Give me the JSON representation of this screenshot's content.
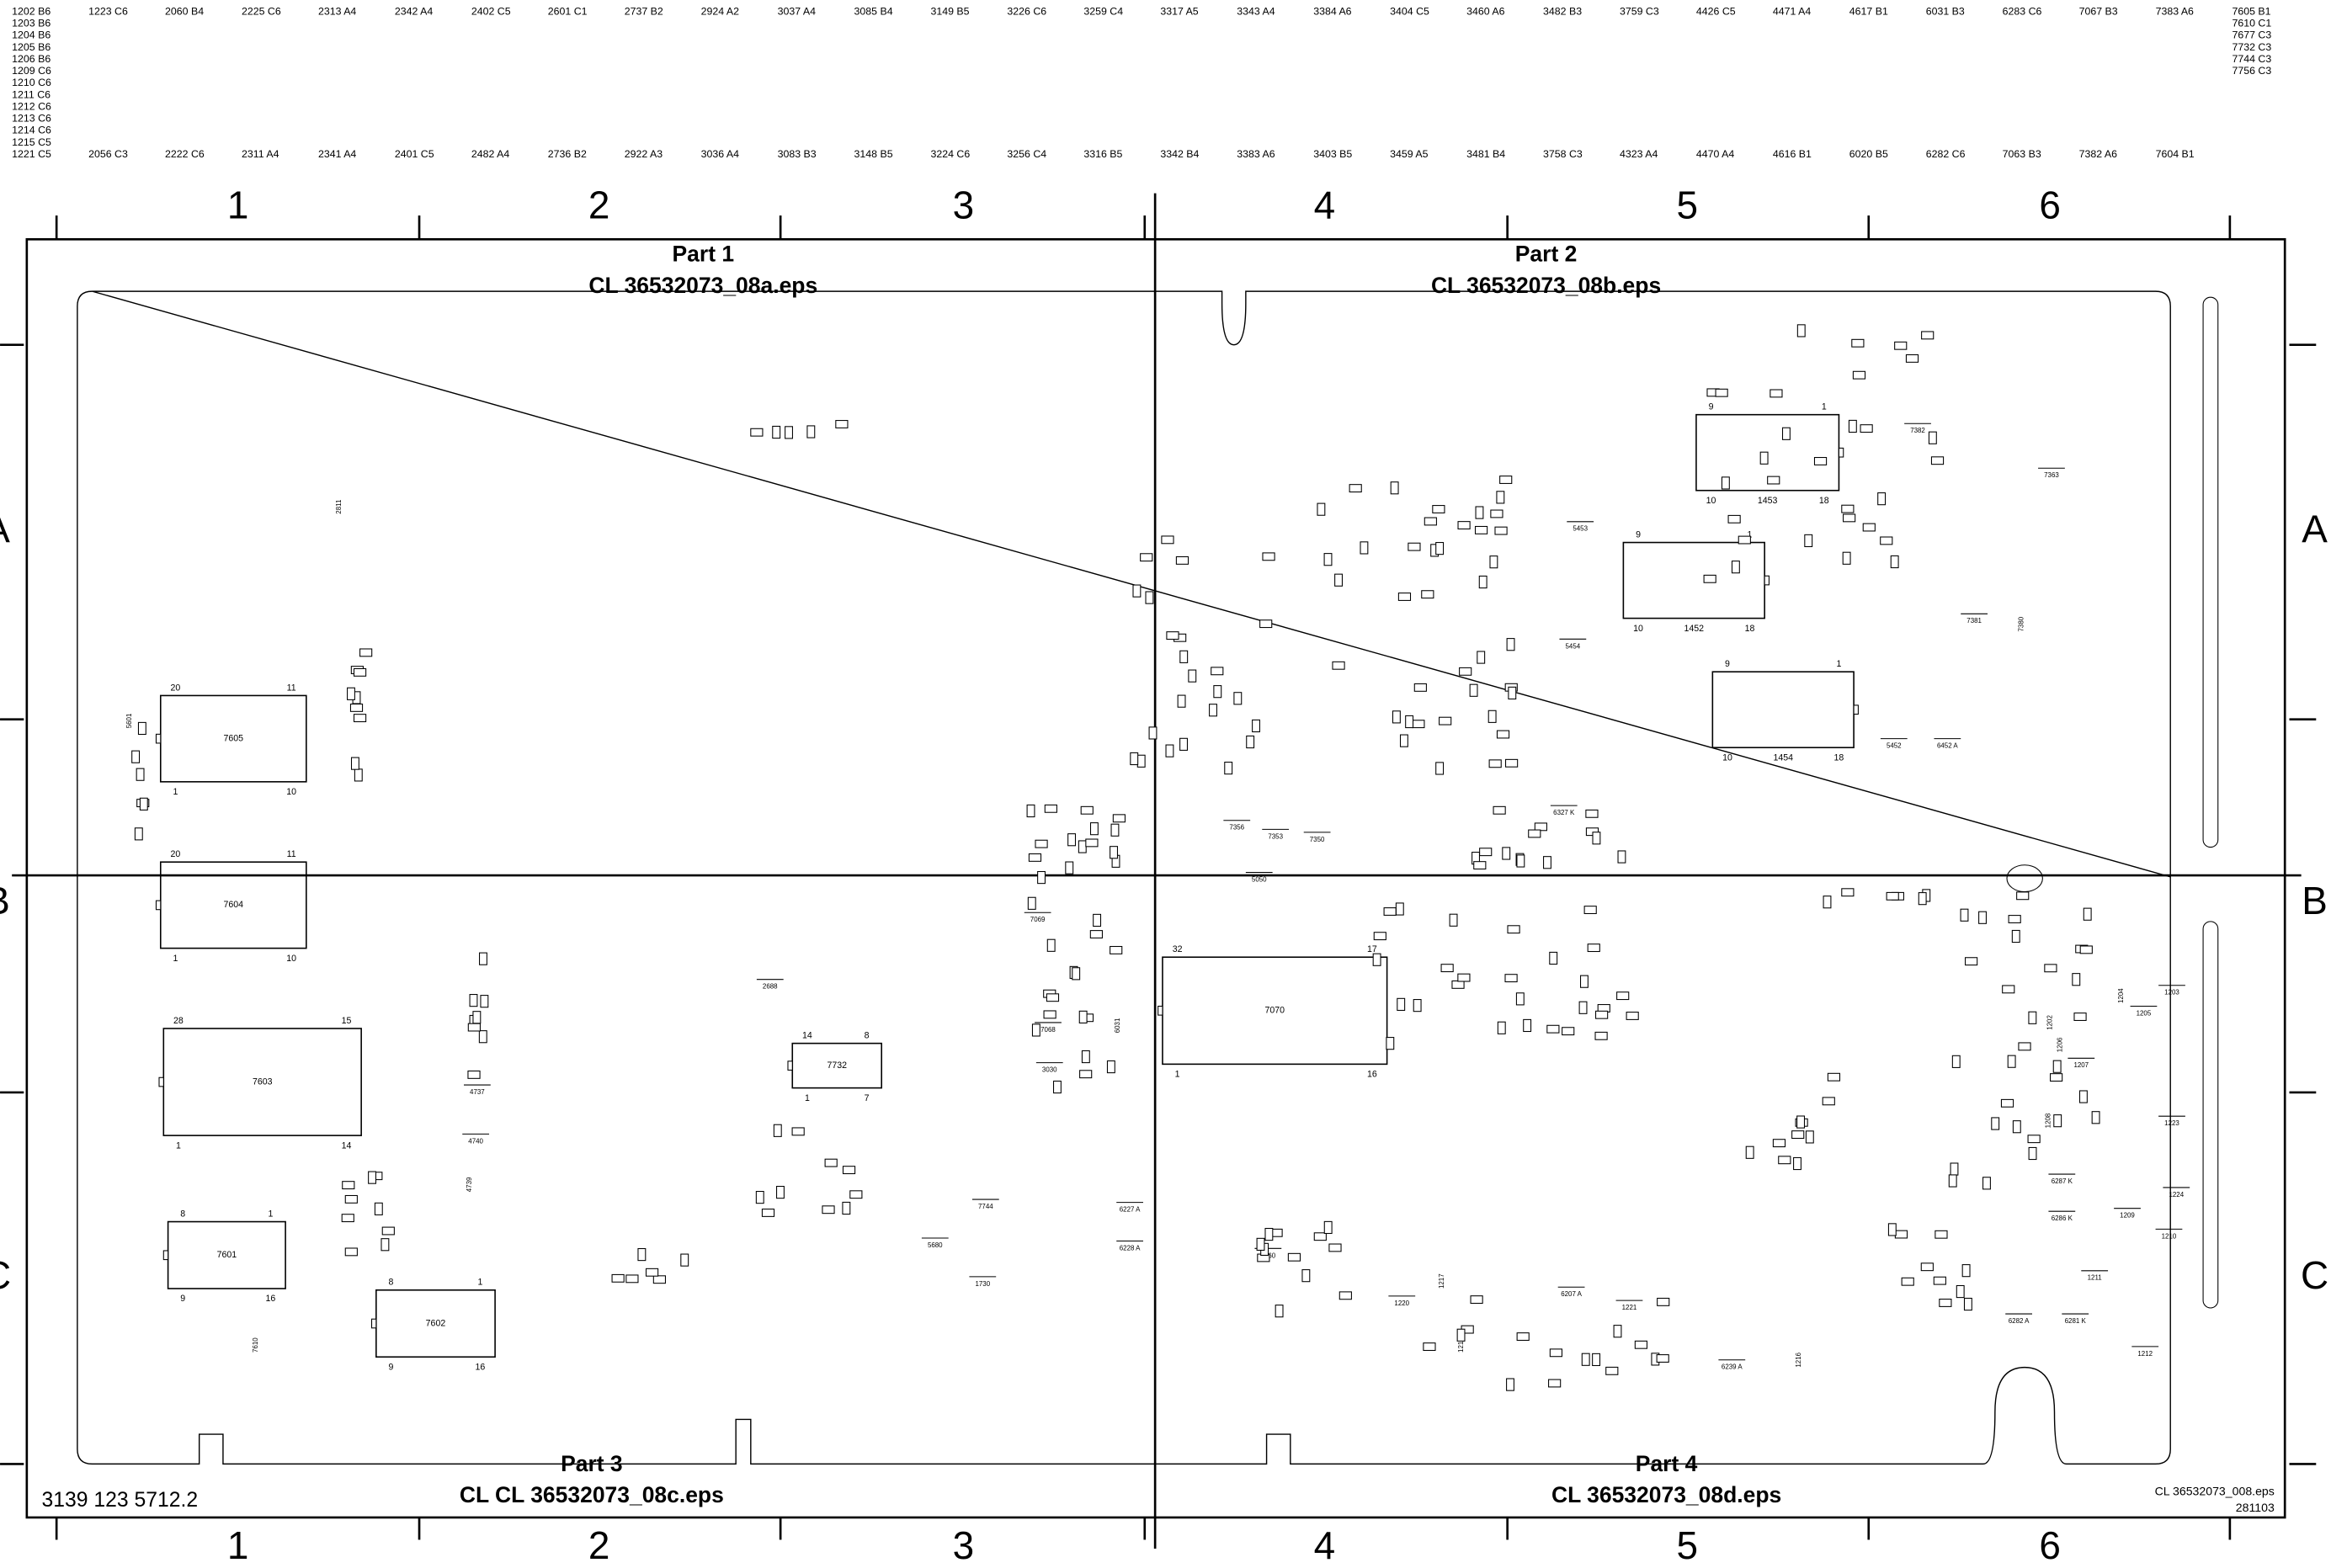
{
  "reference_table": [
    [
      "1202 B6",
      "1203 B6",
      "1204 B6",
      "1205 B6",
      "1206 B6",
      "1209 C6",
      "1210 C6",
      "1211 C6",
      "1212 C6",
      "1213 C6",
      "1214 C6",
      "1215 C5",
      "1221 C5"
    ],
    [
      "1223 C6",
      "2056 C3"
    ],
    [
      "2060 B4",
      "2222 C6"
    ],
    [
      "2225 C6",
      "2311 A4"
    ],
    [
      "2313 A4",
      "2341 A4"
    ],
    [
      "2342 A4",
      "2401 C5"
    ],
    [
      "2402 C5",
      "2482 A4"
    ],
    [
      "2601 C1",
      "2736 B2"
    ],
    [
      "2737 B2",
      "2922 A3"
    ],
    [
      "2924 A2",
      "3036 A4"
    ],
    [
      "3037 A4",
      "3083 B3"
    ],
    [
      "3085 B4",
      "3148 B5"
    ],
    [
      "3149 B5",
      "3224 C6"
    ],
    [
      "3226 C6",
      "3256 C4"
    ],
    [
      "3259 C4",
      "3316 B5"
    ],
    [
      "3317 A5",
      "3342 B4"
    ],
    [
      "3343 A4",
      "3383 A6"
    ],
    [
      "3384 A6",
      "3403 B5"
    ],
    [
      "3404 C5",
      "3459 A5"
    ],
    [
      "3460 A6",
      "3481 B4"
    ],
    [
      "3482 B3",
      "3758 C3"
    ],
    [
      "3759 C3",
      "4323 A4"
    ],
    [
      "4426 C5",
      "4470 A4"
    ],
    [
      "4471 A4",
      "4616 B1"
    ],
    [
      "4617 B1",
      "6020 B5"
    ],
    [
      "6031 B3",
      "6282 C6"
    ],
    [
      "6283 C6",
      "7063 B3"
    ],
    [
      "7067 B3",
      "7382 A6"
    ],
    [
      "7383 A6",
      "7604 B1"
    ],
    [
      "7605 B1",
      "7610 C1",
      "7677 C3",
      "7732 C3",
      "7744 C3",
      "7756 C3"
    ]
  ],
  "grid_columns": [
    "1",
    "2",
    "3",
    "4",
    "5",
    "6"
  ],
  "grid_rows": [
    "A",
    "B",
    "C"
  ],
  "parts": [
    {
      "title": "Part 1",
      "file": "CL 36532073_08a.eps"
    },
    {
      "title": "Part 2",
      "file": "CL 36532073_08b.eps"
    },
    {
      "title": "Part 3",
      "file": "CL CL 36532073_08c.eps"
    },
    {
      "title": "Part 4",
      "file": "CL 36532073_08d.eps"
    }
  ],
  "ics": [
    {
      "label": "7605",
      "pins": [
        "20",
        "11",
        "1",
        "10"
      ]
    },
    {
      "label": "7604",
      "pins": [
        "20",
        "11",
        "1",
        "10"
      ]
    },
    {
      "label": "7603",
      "pins": [
        "28",
        "15",
        "1",
        "14"
      ]
    },
    {
      "label": "7601",
      "pins": [
        "8",
        "1",
        "9",
        "16"
      ]
    },
    {
      "label": "7602",
      "pins": [
        "8",
        "1",
        "9",
        "16"
      ]
    },
    {
      "label": "7732",
      "pins": [
        "14",
        "8",
        "1",
        "7"
      ]
    },
    {
      "label": "7070",
      "pins": [
        "32",
        "17",
        "1",
        "16"
      ]
    },
    {
      "label": "1453",
      "pins": [
        "9",
        "1",
        "10",
        "18"
      ]
    },
    {
      "label": "1452",
      "pins": [
        "9",
        "1",
        "10",
        "18"
      ]
    },
    {
      "label": "1454",
      "pins": [
        "9",
        "1",
        "10",
        "18"
      ]
    }
  ],
  "components": [
    "7069",
    "7068",
    "3030",
    "2688",
    "5680",
    "6031",
    "5050",
    "4737",
    "4740",
    "4739",
    "5453",
    "5454",
    "5452",
    "6452 A",
    "6327 K",
    "6207 A",
    "6239 A",
    "6282 A",
    "6281 K",
    "6286 K",
    "6287 K",
    "6227 A",
    "6228 A",
    "7260",
    "7356",
    "7353",
    "7350",
    "7744",
    "7363",
    "7382",
    "7381",
    "7380",
    "7610",
    "5601",
    "1730",
    "1220",
    "1221",
    "1217",
    "1218",
    "1216",
    "1204",
    "1203",
    "1205",
    "1202",
    "1206",
    "1207",
    "1208",
    "1223",
    "1224",
    "1209",
    "1210",
    "1211",
    "1212",
    "2811"
  ],
  "footer": {
    "code": "3139 123 5712.2",
    "file": "CL 36532073_008.eps",
    "date": "281103"
  }
}
